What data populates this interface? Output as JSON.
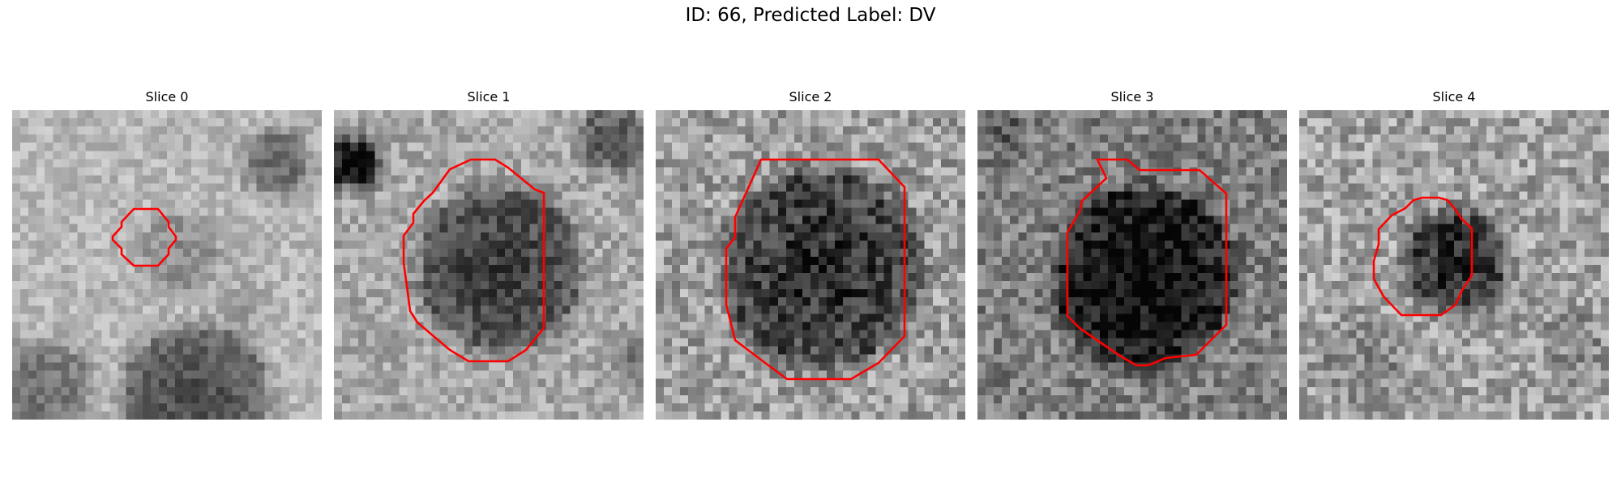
{
  "figure": {
    "title": "ID: 66, Predicted Label: DV"
  },
  "style": {
    "contour_color": "#ff0000"
  },
  "panels": [
    {
      "title": "Slice 0"
    },
    {
      "title": "Slice 1"
    },
    {
      "title": "Slice 2"
    },
    {
      "title": "Slice 3"
    },
    {
      "title": "Slice 4"
    }
  ]
}
